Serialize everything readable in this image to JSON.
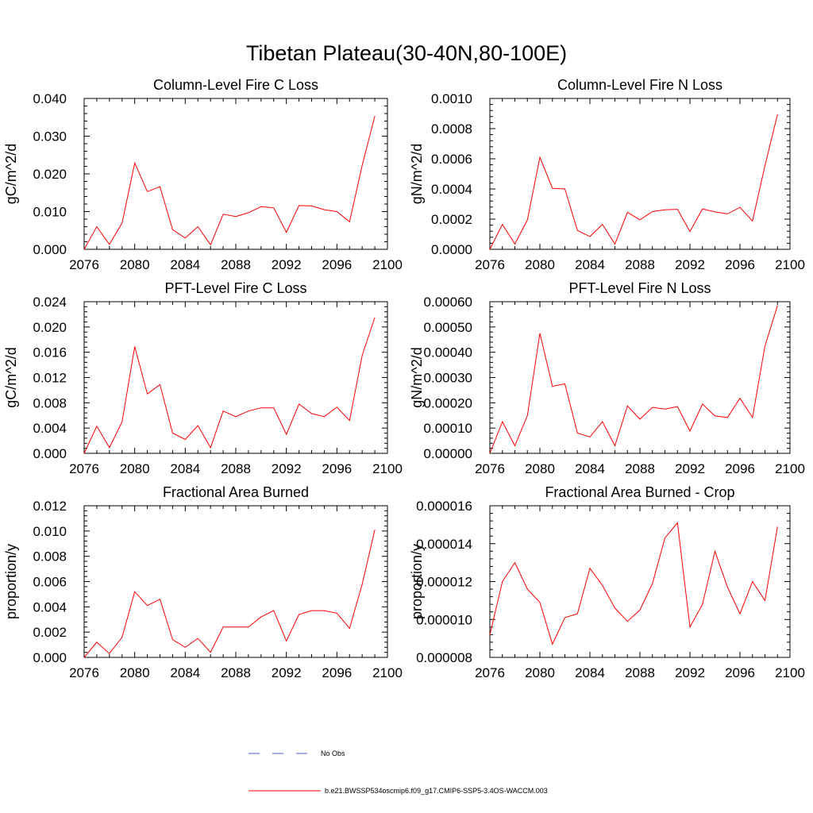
{
  "title": "Tibetan Plateau(30-40N,80-100E)",
  "colors": {
    "series": "#ff0000",
    "obs": "#4a5bd0",
    "axis": "#000000"
  },
  "legend": {
    "obs_label": "No Obs",
    "model_label": "b.e21.BWSSP534oscmip6.f09_g17.CMIP6-SSP5-3.4OS-WACCM.003"
  },
  "chart_data": [
    {
      "type": "line",
      "title": "Column-Level Fire C Loss",
      "ylabel": "gC/m^2/d",
      "xlim": [
        2076,
        2100
      ],
      "xticks": [
        "2076",
        "2080",
        "2084",
        "2088",
        "2092",
        "2096",
        "2100"
      ],
      "ylim": [
        0,
        0.04
      ],
      "yticks": [
        "0.000",
        "0.010",
        "0.020",
        "0.030",
        "0.040"
      ],
      "x": [
        2076,
        2077,
        2078,
        2079,
        2080,
        2081,
        2082,
        2083,
        2084,
        2085,
        2086,
        2087,
        2088,
        2089,
        2090,
        2091,
        2092,
        2093,
        2094,
        2095,
        2096,
        2097,
        2098,
        2099
      ],
      "series": [
        {
          "values": [
            0.0,
            0.006,
            0.0013,
            0.007,
            0.0229,
            0.0153,
            0.0166,
            0.0052,
            0.003,
            0.006,
            0.0012,
            0.0093,
            0.0087,
            0.0097,
            0.0113,
            0.011,
            0.0045,
            0.0116,
            0.0115,
            0.0105,
            0.01,
            0.0073,
            0.0223,
            0.0353
          ]
        }
      ]
    },
    {
      "type": "line",
      "title": "Column-Level Fire N Loss",
      "ylabel": "gN/m^2/d",
      "xlim": [
        2076,
        2100
      ],
      "xticks": [
        "2076",
        "2080",
        "2084",
        "2088",
        "2092",
        "2096",
        "2100"
      ],
      "ylim": [
        0,
        0.001
      ],
      "yticks": [
        "0.0000",
        "0.0002",
        "0.0004",
        "0.0006",
        "0.0008",
        "0.0010"
      ],
      "x": [
        2076,
        2077,
        2078,
        2079,
        2080,
        2081,
        2082,
        2083,
        2084,
        2085,
        2086,
        2087,
        2088,
        2089,
        2090,
        2091,
        2092,
        2093,
        2094,
        2095,
        2096,
        2097,
        2098,
        2099
      ],
      "series": [
        {
          "values": [
            0.0,
            0.000165,
            3.5e-05,
            0.000195,
            0.00061,
            0.000405,
            0.0004,
            0.000125,
            8.5e-05,
            0.000165,
            3.5e-05,
            0.000245,
            0.000195,
            0.00025,
            0.000262,
            0.000265,
            0.000118,
            0.000268,
            0.000248,
            0.000235,
            0.000278,
            0.000188,
            0.000555,
            0.000895
          ]
        }
      ]
    },
    {
      "type": "line",
      "title": "PFT-Level Fire C Loss",
      "ylabel": "gC/m^2/d",
      "xlim": [
        2076,
        2100
      ],
      "xticks": [
        "2076",
        "2080",
        "2084",
        "2088",
        "2092",
        "2096",
        "2100"
      ],
      "ylim": [
        0,
        0.024
      ],
      "yticks": [
        "0.000",
        "0.004",
        "0.008",
        "0.012",
        "0.016",
        "0.020",
        "0.024"
      ],
      "x": [
        2076,
        2077,
        2078,
        2079,
        2080,
        2081,
        2082,
        2083,
        2084,
        2085,
        2086,
        2087,
        2088,
        2089,
        2090,
        2091,
        2092,
        2093,
        2094,
        2095,
        2096,
        2097,
        2098,
        2099
      ],
      "series": [
        {
          "values": [
            0.0,
            0.0043,
            0.0009,
            0.005,
            0.0169,
            0.0094,
            0.0109,
            0.0032,
            0.0022,
            0.0044,
            0.0009,
            0.0067,
            0.0058,
            0.0067,
            0.0072,
            0.0072,
            0.003,
            0.0078,
            0.0063,
            0.0058,
            0.0073,
            0.0052,
            0.0155,
            0.0215
          ]
        }
      ]
    },
    {
      "type": "line",
      "title": "PFT-Level Fire N Loss",
      "ylabel": "gN/m^2/d",
      "xlim": [
        2076,
        2100
      ],
      "xticks": [
        "2076",
        "2080",
        "2084",
        "2088",
        "2092",
        "2096",
        "2100"
      ],
      "ylim": [
        0,
        0.0006
      ],
      "yticks": [
        "0.00000",
        "0.00010",
        "0.00020",
        "0.00030",
        "0.00040",
        "0.00050",
        "0.00060"
      ],
      "x": [
        2076,
        2077,
        2078,
        2079,
        2080,
        2081,
        2082,
        2083,
        2084,
        2085,
        2086,
        2087,
        2088,
        2089,
        2090,
        2091,
        2092,
        2093,
        2094,
        2095,
        2096,
        2097,
        2098,
        2099
      ],
      "series": [
        {
          "values": [
            0.0,
            0.000125,
            3e-05,
            0.00015,
            0.000475,
            0.000265,
            0.000275,
            8e-05,
            6.5e-05,
            0.000125,
            3e-05,
            0.000188,
            0.000135,
            0.000182,
            0.000175,
            0.000185,
            8.8e-05,
            0.000195,
            0.000148,
            0.000142,
            0.000218,
            0.000142,
            0.000425,
            0.000585
          ]
        }
      ]
    },
    {
      "type": "line",
      "title": "Fractional Area Burned",
      "ylabel": "proportion/y",
      "xlim": [
        2076,
        2100
      ],
      "xticks": [
        "2076",
        "2080",
        "2084",
        "2088",
        "2092",
        "2096",
        "2100"
      ],
      "ylim": [
        0,
        0.012
      ],
      "yticks": [
        "0.000",
        "0.002",
        "0.004",
        "0.006",
        "0.008",
        "0.010",
        "0.012"
      ],
      "x": [
        2076,
        2077,
        2078,
        2079,
        2080,
        2081,
        2082,
        2083,
        2084,
        2085,
        2086,
        2087,
        2088,
        2089,
        2090,
        2091,
        2092,
        2093,
        2094,
        2095,
        2096,
        2097,
        2098,
        2099
      ],
      "series": [
        {
          "values": [
            0.0,
            0.0012,
            0.0003,
            0.0016,
            0.0052,
            0.0041,
            0.0046,
            0.0014,
            0.0008,
            0.0015,
            0.0004,
            0.0024,
            0.0024,
            0.0024,
            0.0032,
            0.0037,
            0.0013,
            0.0034,
            0.0037,
            0.0037,
            0.0035,
            0.0023,
            0.0058,
            0.0101
          ]
        }
      ]
    },
    {
      "type": "line",
      "title": "Fractional Area Burned - Crop",
      "ylabel": "proportion/y",
      "xlim": [
        2076,
        2100
      ],
      "xticks": [
        "2076",
        "2080",
        "2084",
        "2088",
        "2092",
        "2096",
        "2100"
      ],
      "ylim": [
        8e-06,
        1.6e-05
      ],
      "yticks": [
        "0.000008",
        "0.000010",
        "0.000012",
        "0.000014",
        "0.000016"
      ],
      "x": [
        2076,
        2077,
        2078,
        2079,
        2080,
        2081,
        2082,
        2083,
        2084,
        2085,
        2086,
        2087,
        2088,
        2089,
        2090,
        2091,
        2092,
        2093,
        2094,
        2095,
        2096,
        2097,
        2098,
        2099
      ],
      "series": [
        {
          "values": [
            9.2e-06,
            1.2e-05,
            1.3e-05,
            1.16e-05,
            1.09e-05,
            8.7e-06,
            1.01e-05,
            1.03e-05,
            1.27e-05,
            1.18e-05,
            1.06e-05,
            9.9e-06,
            1.05e-05,
            1.19e-05,
            1.43e-05,
            1.51e-05,
            9.6e-06,
            1.08e-05,
            1.36e-05,
            1.17e-05,
            1.03e-05,
            1.2e-05,
            1.1e-05,
            1.49e-05
          ]
        }
      ]
    }
  ]
}
